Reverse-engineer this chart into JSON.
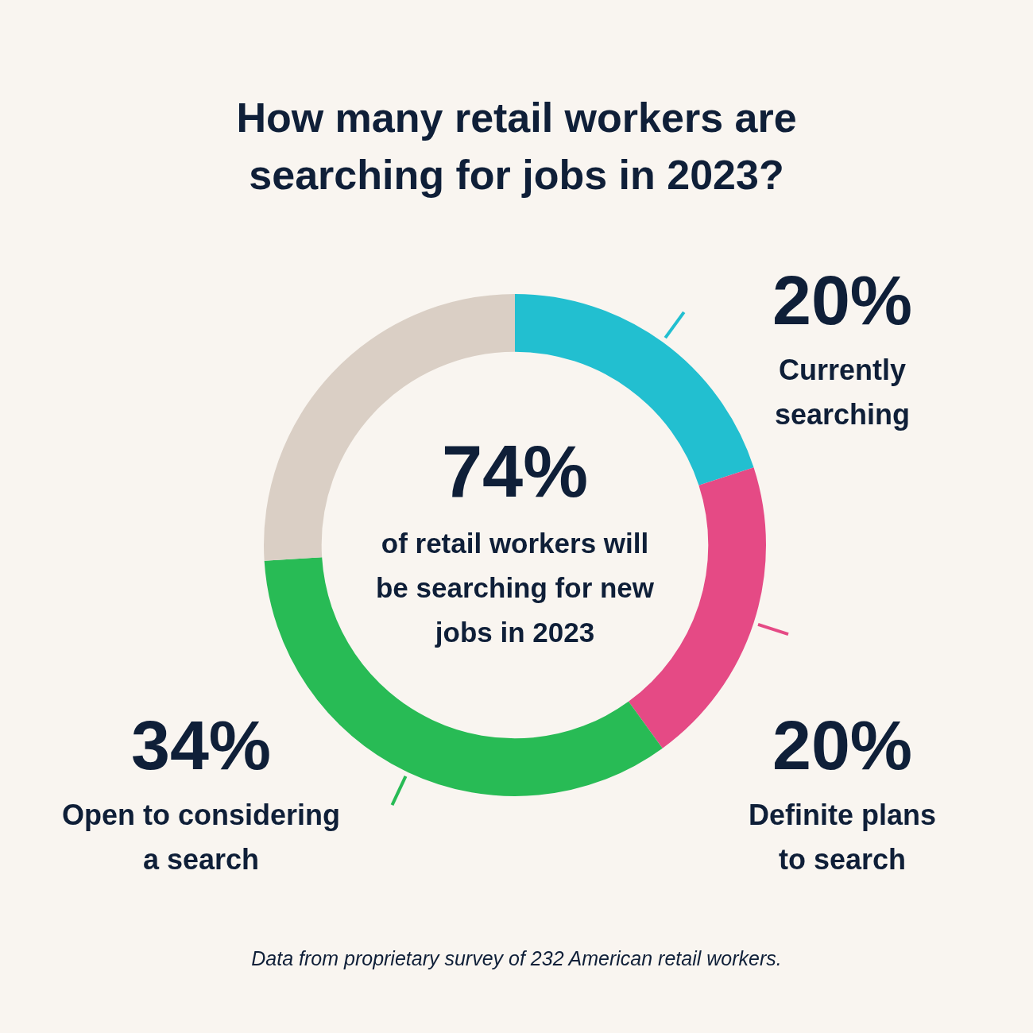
{
  "chart_data": {
    "type": "donut",
    "title": "How many retail workers are searching for jobs in 2023?",
    "categories": [
      "Currently searching",
      "Definite plans to search",
      "Open to considering a search",
      null
    ],
    "values": [
      20,
      20,
      34,
      26
    ],
    "colors": [
      "#22bfd0",
      "#e54a85",
      "#28bb55",
      "#dacfc5"
    ],
    "value_labels": [
      "20%",
      "20%",
      "34%",
      null
    ],
    "annotations": [
      "74%",
      "of retail workers will be searching for new jobs in 2023",
      "Data from proprietary survey of 232 American retail workers."
    ]
  }
}
